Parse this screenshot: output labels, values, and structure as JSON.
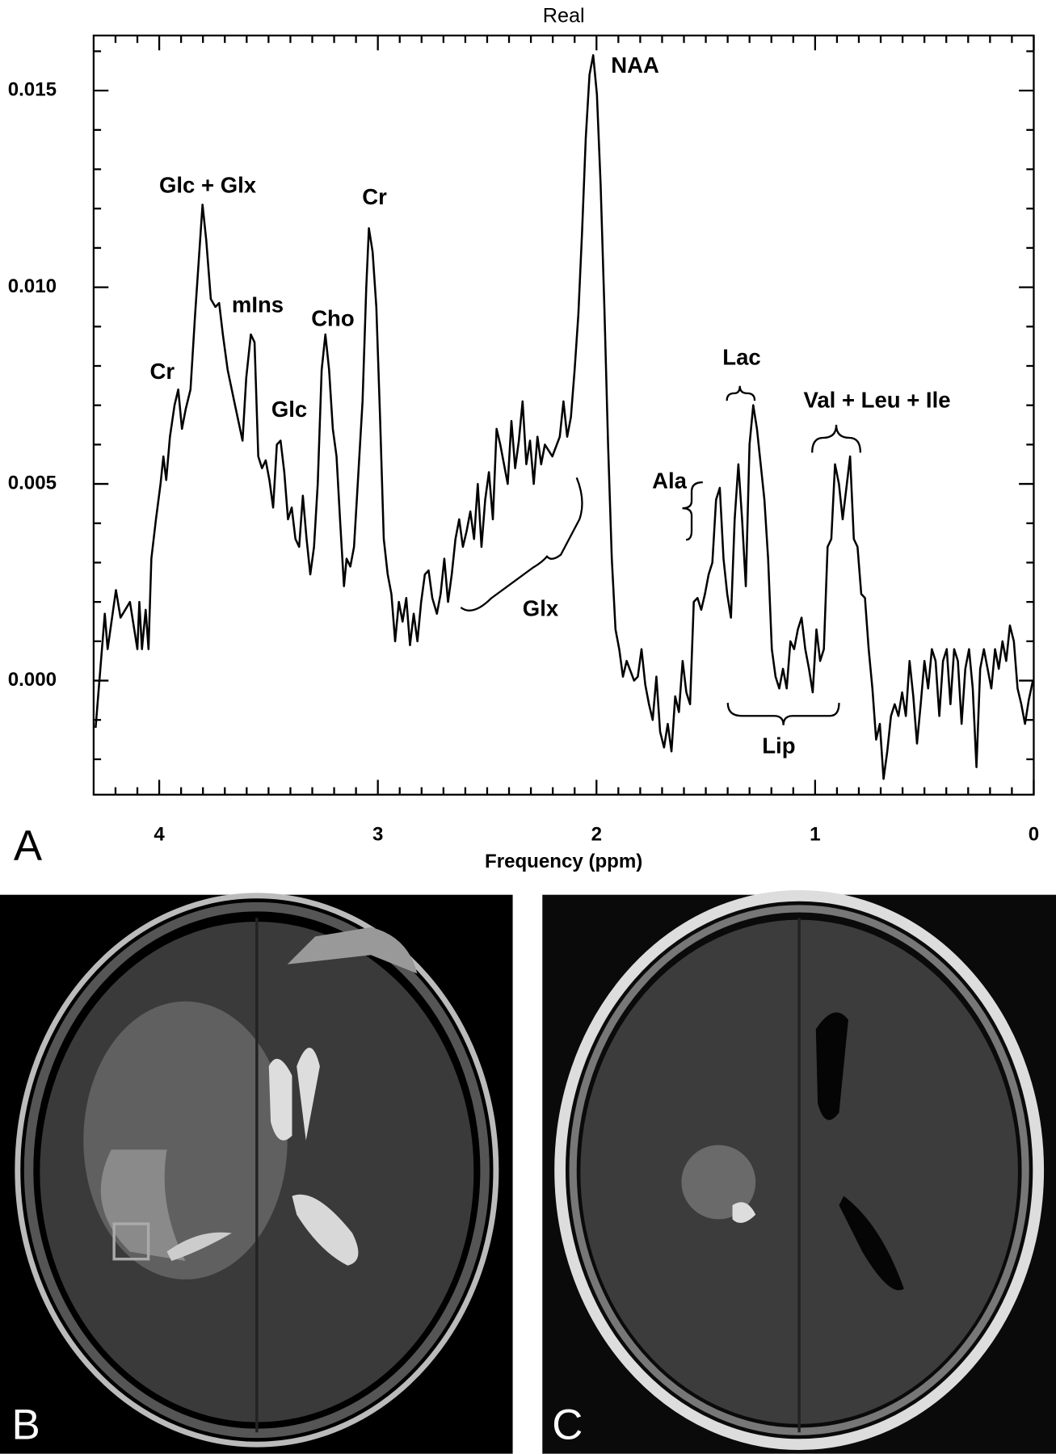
{
  "chart_data": {
    "type": "line",
    "title": "Real",
    "x_label": "Frequency (ppm)",
    "panel_labels": [
      "A",
      "B",
      "C"
    ],
    "color": "#000000",
    "xlim": [
      4.3,
      0
    ],
    "ylim": [
      -0.0029,
      0.0164
    ],
    "xticks": [
      4,
      3,
      2,
      1,
      0
    ],
    "yticks": [
      {
        "value": 0,
        "label": "0.000"
      },
      {
        "value": 0.005,
        "label": "0.005"
      },
      {
        "value": 0.01,
        "label": "0.010"
      },
      {
        "value": 0.015,
        "label": "0.015"
      }
    ],
    "xminorticks": [
      4.2,
      4.1,
      3.9,
      3.8,
      3.7,
      3.6,
      3.5,
      3.4,
      3.3,
      3.2,
      3.1,
      2.9,
      2.8,
      2.7,
      2.6,
      2.5,
      2.4,
      2.3,
      2.2,
      2.1,
      1.9,
      1.8,
      1.7,
      1.6,
      1.5,
      1.4,
      1.3,
      1.2,
      1.1,
      0.9,
      0.8,
      0.7,
      0.6,
      0.5,
      0.4,
      0.3,
      0.2,
      0.1
    ],
    "yminorticks": [
      -0.002,
      -0.001,
      0.001,
      0.002,
      0.003,
      0.004,
      0.006,
      0.007,
      0.008,
      0.009,
      0.011,
      0.012,
      0.013,
      0.014,
      0.016
    ],
    "annotations": [
      "Glc + Glx",
      "Cr",
      "mIns",
      "Cho",
      "Cr",
      "Glc",
      "NAA",
      "Ala",
      "Lac",
      "Val + Leu + Ile",
      "Glx",
      "Lip"
    ],
    "x": [
      4.291,
      4.249,
      4.236,
      4.198,
      4.177,
      4.134,
      4.1,
      4.091,
      4.079,
      4.062,
      4.049,
      4.036,
      4.015,
      3.994,
      3.981,
      3.968,
      3.951,
      3.93,
      3.913,
      3.896,
      3.879,
      3.857,
      3.836,
      3.819,
      3.802,
      3.785,
      3.764,
      3.743,
      3.726,
      3.709,
      3.687,
      3.657,
      3.619,
      3.602,
      3.581,
      3.564,
      3.547,
      3.53,
      3.513,
      3.496,
      3.479,
      3.462,
      3.445,
      3.428,
      3.411,
      3.394,
      3.377,
      3.36,
      3.343,
      3.326,
      3.309,
      3.292,
      3.275,
      3.257,
      3.24,
      3.223,
      3.206,
      3.189,
      3.172,
      3.155,
      3.143,
      3.126,
      3.109,
      3.092,
      3.07,
      3.053,
      3.041,
      3.024,
      3.007,
      2.99,
      2.973,
      2.955,
      2.938,
      2.921,
      2.904,
      2.887,
      2.87,
      2.853,
      2.836,
      2.819,
      2.802,
      2.785,
      2.768,
      2.751,
      2.73,
      2.713,
      2.696,
      2.679,
      2.662,
      2.645,
      2.628,
      2.611,
      2.594,
      2.577,
      2.56,
      2.543,
      2.526,
      2.509,
      2.492,
      2.474,
      2.457,
      2.44,
      2.423,
      2.406,
      2.389,
      2.372,
      2.355,
      2.338,
      2.321,
      2.304,
      2.287,
      2.27,
      2.253,
      2.236,
      2.202,
      2.168,
      2.151,
      2.134,
      2.117,
      2.1,
      2.083,
      2.066,
      2.049,
      2.032,
      2.015,
      1.998,
      1.981,
      1.964,
      1.947,
      1.93,
      1.913,
      1.896,
      1.879,
      1.862,
      1.828,
      1.811,
      1.794,
      1.777,
      1.76,
      1.743,
      1.726,
      1.709,
      1.691,
      1.674,
      1.657,
      1.64,
      1.623,
      1.606,
      1.589,
      1.572,
      1.555,
      1.538,
      1.521,
      1.504,
      1.487,
      1.47,
      1.453,
      1.436,
      1.419,
      1.402,
      1.385,
      1.368,
      1.351,
      1.334,
      1.317,
      1.3,
      1.283,
      1.266,
      1.249,
      1.232,
      1.215,
      1.198,
      1.181,
      1.164,
      1.147,
      1.13,
      1.113,
      1.096,
      1.079,
      1.062,
      1.045,
      1.028,
      1.011,
      0.994,
      0.977,
      0.96,
      0.943,
      0.926,
      0.909,
      0.891,
      0.874,
      0.857,
      0.84,
      0.823,
      0.806,
      0.789,
      0.772,
      0.755,
      0.738,
      0.721,
      0.704,
      0.687,
      0.67,
      0.653,
      0.636,
      0.619,
      0.602,
      0.585,
      0.568,
      0.551,
      0.534,
      0.517,
      0.5,
      0.483,
      0.466,
      0.449,
      0.432,
      0.415,
      0.398,
      0.381,
      0.364,
      0.347,
      0.33,
      0.313,
      0.296,
      0.279,
      0.262,
      0.245,
      0.228,
      0.211,
      0.194,
      0.177,
      0.16,
      0.143,
      0.126,
      0.109,
      0.091,
      0.074,
      0.057,
      0.04,
      0.023,
      0.004
    ],
    "values": [
      -0.0012,
      0.0017,
      0.0008,
      0.0023,
      0.0016,
      0.002,
      0.0008,
      0.002,
      0.0008,
      0.0018,
      0.0008,
      0.0031,
      0.0041,
      0.005,
      0.0057,
      0.0051,
      0.0062,
      0.007,
      0.0074,
      0.0064,
      0.0069,
      0.0074,
      0.0093,
      0.0107,
      0.0121,
      0.0112,
      0.0097,
      0.0095,
      0.0096,
      0.0088,
      0.0079,
      0.0071,
      0.0061,
      0.0077,
      0.0088,
      0.0086,
      0.0057,
      0.0054,
      0.0056,
      0.0051,
      0.0044,
      0.006,
      0.0061,
      0.0053,
      0.0041,
      0.0044,
      0.0036,
      0.0034,
      0.0047,
      0.0036,
      0.0027,
      0.0034,
      0.005,
      0.0079,
      0.0088,
      0.0079,
      0.0064,
      0.0057,
      0.004,
      0.0024,
      0.0031,
      0.0029,
      0.0034,
      0.005,
      0.0071,
      0.01,
      0.0115,
      0.0109,
      0.0095,
      0.0067,
      0.0036,
      0.0027,
      0.0022,
      0.001,
      0.002,
      0.0015,
      0.0021,
      0.0009,
      0.0017,
      0.001,
      0.002,
      0.0027,
      0.0028,
      0.0021,
      0.0017,
      0.0022,
      0.0031,
      0.002,
      0.0027,
      0.0036,
      0.0041,
      0.0034,
      0.0038,
      0.0043,
      0.0036,
      0.005,
      0.0034,
      0.0046,
      0.0053,
      0.0041,
      0.0064,
      0.006,
      0.0055,
      0.005,
      0.0066,
      0.0054,
      0.0061,
      0.0071,
      0.0055,
      0.0061,
      0.005,
      0.0062,
      0.0055,
      0.006,
      0.0057,
      0.0062,
      0.0071,
      0.0062,
      0.0067,
      0.0079,
      0.0093,
      0.0114,
      0.0138,
      0.0154,
      0.0159,
      0.0149,
      0.0126,
      0.0095,
      0.006,
      0.0031,
      0.0013,
      0.0008,
      0.0001,
      0.0005,
      0,
      0.0001,
      0.0008,
      -0.0001,
      -0.0006,
      -0.001,
      0.0001,
      -0.0013,
      -0.0017,
      -0.0011,
      -0.0018,
      -0.0004,
      -0.0008,
      0.0005,
      -0.0003,
      -0.0006,
      0.002,
      0.0021,
      0.0018,
      0.0022,
      0.0027,
      0.003,
      0.0046,
      0.0049,
      0.0031,
      0.0022,
      0.0016,
      0.0041,
      0.0055,
      0.0041,
      0.0024,
      0.006,
      0.007,
      0.0064,
      0.0055,
      0.0046,
      0.0031,
      0.0008,
      0.0001,
      -0.0002,
      0.0003,
      -0.0002,
      0.001,
      0.0008,
      0.0013,
      0.0016,
      0.0008,
      0.0003,
      -0.0003,
      0.0013,
      0.0005,
      0.0008,
      0.0034,
      0.0036,
      0.0055,
      0.005,
      0.0041,
      0.0049,
      0.0057,
      0.0036,
      0.0034,
      0.0022,
      0.0021,
      0.0008,
      -0.0002,
      -0.0015,
      -0.0011,
      -0.0025,
      -0.0018,
      -0.0009,
      -0.0006,
      -0.0009,
      -0.0003,
      -0.0009,
      0.0005,
      -0.0004,
      -0.0016,
      -0.0006,
      0.0005,
      -0.0002,
      0.0008,
      0.0005,
      -0.0009,
      0.0005,
      0.0008,
      -0.0006,
      0.0008,
      0.0005,
      -0.0011,
      0.0003,
      0.0008,
      -0.0002,
      -0.0022,
      0.0003,
      0.0008,
      0.0003,
      -0.0002,
      0.0008,
      0.0003,
      0.001,
      0.0005,
      0.0014,
      0.001,
      -0.0002,
      -0.0006,
      -0.0011,
      -0.0005,
      0
    ]
  }
}
